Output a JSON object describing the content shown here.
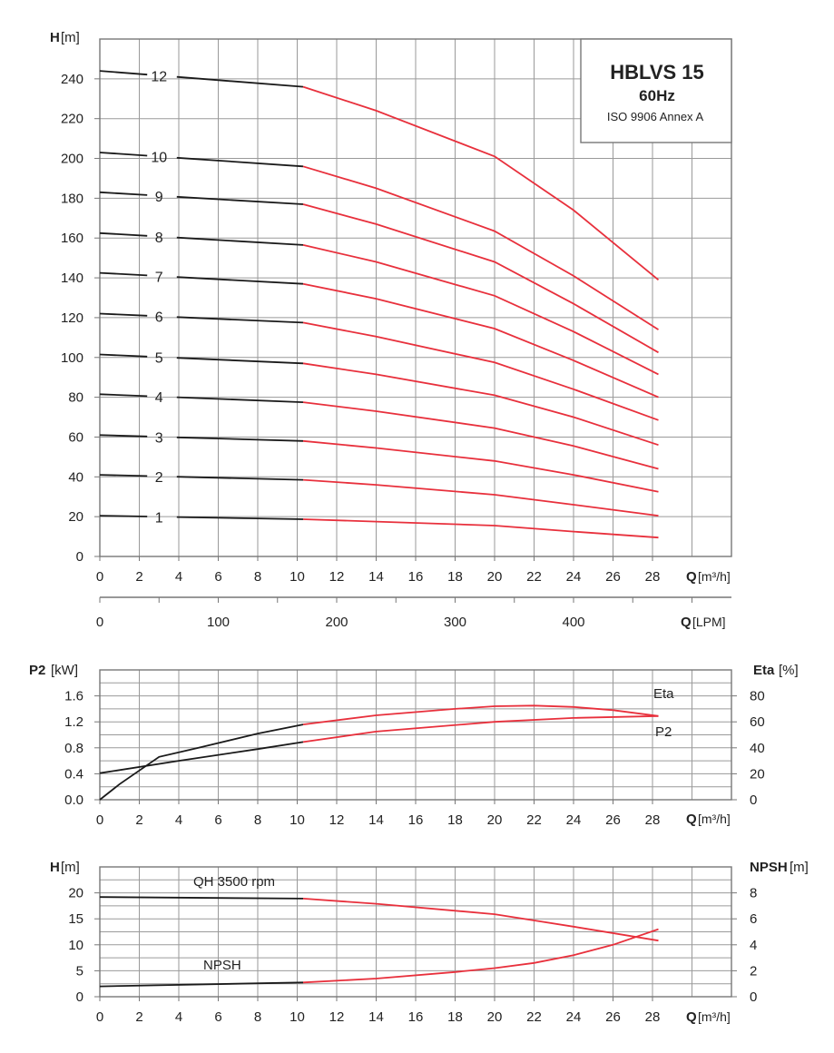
{
  "colors": {
    "curve_black": "#1a1a1a",
    "curve_red": "#e8303c",
    "grid": "#9a9a9a"
  },
  "chart_data": [
    {
      "type": "line",
      "title": "HBLVS 15",
      "subtitle": "60Hz",
      "annotation": "ISO 9906 Annex A",
      "ylabel_bold": "H",
      "ylabel_unit": "[m]",
      "xlabel_bold": "Q",
      "xlabel_unit": "[m³/h]",
      "x2label_bold": "Q",
      "x2label_unit": "[LPM]",
      "xlim": [
        0,
        32
      ],
      "ylim": [
        0,
        260
      ],
      "xticks": [
        0,
        2,
        4,
        6,
        8,
        10,
        12,
        14,
        16,
        18,
        20,
        22,
        24,
        26,
        28
      ],
      "yticks": [
        0,
        20,
        40,
        60,
        80,
        100,
        120,
        140,
        160,
        180,
        200,
        220,
        240
      ],
      "x2ticks": [
        0,
        100,
        200,
        300,
        400
      ],
      "grid": true,
      "series": [
        {
          "name": "1",
          "x": [
            0,
            10.3,
            14,
            20,
            24,
            28.3
          ],
          "y": [
            20.5,
            18.7,
            17.5,
            15.5,
            12.5,
            9.5
          ]
        },
        {
          "name": "2",
          "x": [
            0,
            10.3,
            14,
            20,
            24,
            28.3
          ],
          "y": [
            41,
            38.5,
            36,
            31,
            26,
            20.5
          ]
        },
        {
          "name": "3",
          "x": [
            0,
            10.3,
            14,
            20,
            24,
            28.3
          ],
          "y": [
            61,
            58,
            54.5,
            48,
            41,
            32.5
          ]
        },
        {
          "name": "4",
          "x": [
            0,
            10.3,
            14,
            20,
            24,
            28.3
          ],
          "y": [
            81.5,
            77.5,
            73,
            64.5,
            55.5,
            44
          ]
        },
        {
          "name": "5",
          "x": [
            0,
            10.3,
            14,
            20,
            24,
            28.3
          ],
          "y": [
            101.5,
            97,
            91.5,
            81,
            70,
            56
          ]
        },
        {
          "name": "6",
          "x": [
            0,
            10.3,
            14,
            20,
            24,
            28.3
          ],
          "y": [
            122,
            117.5,
            110.5,
            97.5,
            84,
            68.5
          ]
        },
        {
          "name": "7",
          "x": [
            0,
            10.3,
            14,
            20,
            24,
            28.3
          ],
          "y": [
            142.5,
            137,
            129.5,
            114.5,
            98.5,
            80
          ]
        },
        {
          "name": "8",
          "x": [
            0,
            10.3,
            14,
            20,
            24,
            28.3
          ],
          "y": [
            162.5,
            156.5,
            148,
            131,
            113,
            91.5
          ]
        },
        {
          "name": "9",
          "x": [
            0,
            10.3,
            14,
            20,
            24,
            28.3
          ],
          "y": [
            183,
            177,
            167,
            148,
            127,
            102.5
          ]
        },
        {
          "name": "10",
          "x": [
            0,
            10.3,
            14,
            20,
            24,
            28.3
          ],
          "y": [
            203,
            196,
            185,
            163.5,
            141,
            114
          ]
        },
        {
          "name": "12",
          "x": [
            0,
            10.3,
            14,
            20,
            24,
            28.3
          ],
          "y": [
            244,
            236,
            224,
            201,
            174,
            139
          ]
        }
      ]
    },
    {
      "type": "line",
      "ylabel_bold": "P2",
      "ylabel_unit": "[kW]",
      "y2label_bold": "Eta",
      "y2label_unit": "[%]",
      "xlabel_bold": "Q",
      "xlabel_unit": "[m³/h]",
      "xlim": [
        0,
        32
      ],
      "ylim": [
        0,
        2.0
      ],
      "y2lim": [
        0,
        100
      ],
      "xticks": [
        0,
        2,
        4,
        6,
        8,
        10,
        12,
        14,
        16,
        18,
        20,
        22,
        24,
        26,
        28
      ],
      "yticks": [
        "0.0",
        "0.4",
        "0.8",
        "1.2",
        "1.6"
      ],
      "y2ticks": [
        0,
        20,
        40,
        60,
        80
      ],
      "grid": true,
      "series": [
        {
          "name": "P2",
          "axis": "left",
          "x": [
            0,
            4,
            8,
            10.3,
            14,
            20,
            24,
            28.3
          ],
          "y": [
            0.41,
            0.6,
            0.78,
            0.89,
            1.05,
            1.2,
            1.26,
            1.29
          ]
        },
        {
          "name": "Eta",
          "axis": "right",
          "x": [
            0,
            1,
            3,
            5,
            8,
            10.3,
            14,
            18,
            20,
            22,
            24,
            26,
            28.3
          ],
          "y": [
            0,
            12,
            33,
            40,
            51,
            58,
            65,
            70,
            72,
            72.5,
            71.5,
            69,
            64.5
          ]
        }
      ]
    },
    {
      "type": "line",
      "ylabel_bold": "H",
      "ylabel_unit": "[m]",
      "y2label_bold": "NPSH",
      "y2label_unit": "[m]",
      "xlabel_bold": "Q",
      "xlabel_unit": "[m³/h]",
      "xlim": [
        0,
        32
      ],
      "ylim": [
        0,
        25
      ],
      "y2lim": [
        0,
        10
      ],
      "xticks": [
        0,
        2,
        4,
        6,
        8,
        10,
        12,
        14,
        16,
        18,
        20,
        22,
        24,
        26,
        28
      ],
      "yticks": [
        0,
        5,
        10,
        15,
        20
      ],
      "y2ticks": [
        0,
        2,
        4,
        6,
        8
      ],
      "grid": true,
      "series": [
        {
          "name": "QH 3500 rpm",
          "axis": "left",
          "x": [
            0,
            10.3,
            14,
            20,
            24,
            28.3
          ],
          "y": [
            19.2,
            18.9,
            17.9,
            15.9,
            13.5,
            10.8
          ]
        },
        {
          "name": "NPSH",
          "axis": "right",
          "x": [
            0,
            10.3,
            14,
            18,
            20,
            22,
            24,
            26,
            28.3
          ],
          "y": [
            0.8,
            1.1,
            1.4,
            1.9,
            2.2,
            2.6,
            3.2,
            4.0,
            5.2
          ]
        }
      ]
    }
  ]
}
